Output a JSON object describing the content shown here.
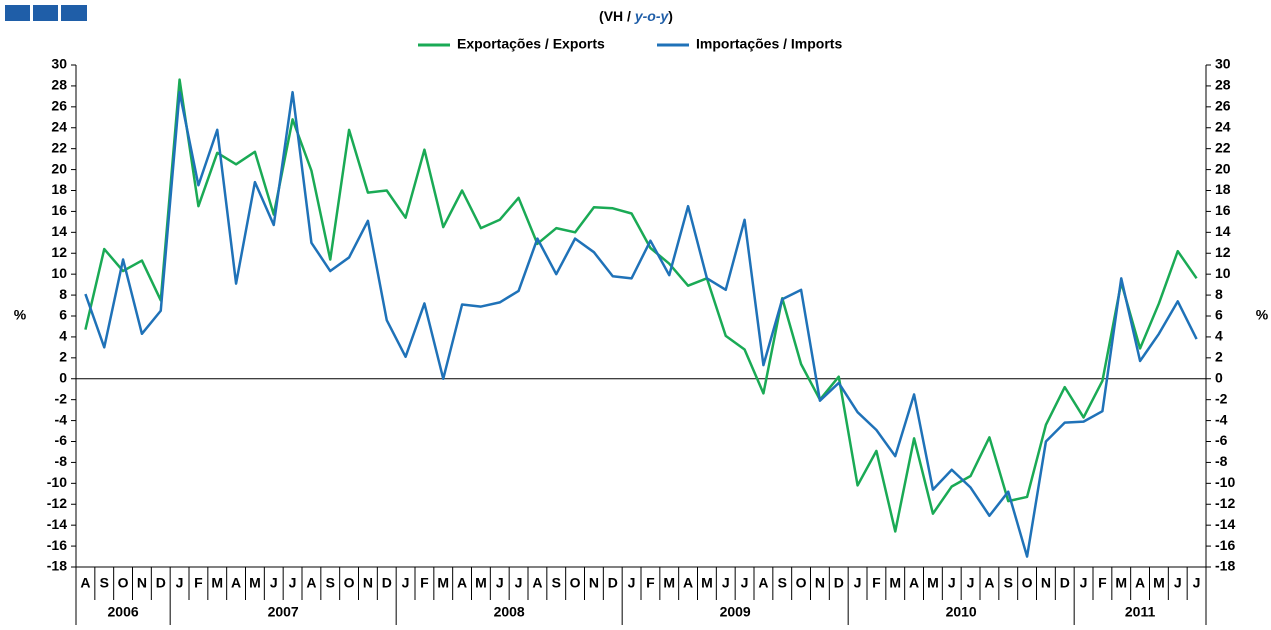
{
  "chart_data": {
    "type": "line",
    "title_parts": [
      "(VH / ",
      "y-o-y",
      ")"
    ],
    "ylabel": "%",
    "y2label": "%",
    "categories": [
      "A",
      "S",
      "O",
      "N",
      "D",
      "J",
      "F",
      "M",
      "A",
      "M",
      "J",
      "J",
      "A",
      "S",
      "O",
      "N",
      "D",
      "J",
      "F",
      "M",
      "A",
      "M",
      "J",
      "J",
      "A",
      "S",
      "O",
      "N",
      "D",
      "J",
      "F",
      "M",
      "A",
      "M",
      "J",
      "J",
      "A",
      "S",
      "O",
      "N",
      "D",
      "J",
      "F",
      "M",
      "A",
      "M",
      "J",
      "J",
      "A",
      "S",
      "O",
      "N",
      "D",
      "J",
      "F",
      "M",
      "A",
      "M",
      "J",
      "J"
    ],
    "years": [
      "2006",
      "2007",
      "2008",
      "2009",
      "2010",
      "2011"
    ],
    "series": [
      {
        "name": "Exportações / Exports",
        "color": "#1aaa55",
        "values": [
          4.7,
          12.4,
          10.3,
          11.3,
          7.5,
          28.6,
          16.5,
          21.6,
          20.5,
          21.7,
          15.7,
          24.8,
          19.9,
          11.4,
          23.8,
          17.8,
          18.0,
          15.4,
          21.9,
          14.5,
          18.0,
          14.4,
          15.2,
          17.3,
          12.9,
          14.4,
          14.0,
          16.4,
          16.3,
          15.8,
          12.5,
          11.0,
          8.9,
          9.6,
          4.1,
          2.8,
          -1.4,
          7.7,
          1.4,
          -2.0,
          0.2,
          -10.2,
          -6.9,
          -14.6,
          -5.7,
          -12.9,
          -10.3,
          -9.3,
          -5.6,
          -11.7,
          -11.3,
          -4.4,
          -0.8,
          -3.7,
          -0.2,
          9.2,
          2.9,
          7.2,
          12.2,
          9.6
        ]
      },
      {
        "name": "Importações / Imports",
        "color": "#1f72b8",
        "values": [
          8.1,
          3.0,
          11.4,
          4.3,
          6.5,
          27.4,
          18.5,
          23.8,
          9.1,
          18.8,
          14.7,
          27.4,
          13.0,
          10.3,
          11.6,
          15.1,
          5.6,
          2.1,
          7.2,
          0.0,
          7.1,
          6.9,
          7.3,
          8.4,
          13.4,
          10.0,
          13.4,
          12.1,
          9.8,
          9.6,
          13.2,
          9.9,
          16.5,
          9.6,
          8.5,
          15.2,
          1.3,
          7.6,
          8.5,
          -2.1,
          -0.4,
          -3.2,
          -4.9,
          -7.4,
          -1.5,
          -10.6,
          -8.7,
          -10.4,
          -13.1,
          -10.8,
          -17.0,
          -6.0,
          -4.2,
          -4.1,
          -3.1,
          9.6,
          1.7,
          4.3,
          7.4,
          3.8
        ]
      }
    ],
    "ylim": [
      -18,
      30
    ],
    "yticks": [
      -18,
      -16,
      -14,
      -12,
      -10,
      -8,
      -6,
      -4,
      -2,
      0,
      2,
      4,
      6,
      8,
      10,
      12,
      14,
      16,
      18,
      20,
      22,
      24,
      26,
      28,
      30
    ],
    "y2lim": [
      -18,
      30
    ],
    "y2ticks": [
      -18,
      -16,
      -14,
      -12,
      -10,
      -8,
      -6,
      -4,
      -2,
      0,
      2,
      4,
      6,
      8,
      10,
      12,
      14,
      16,
      18,
      20,
      22,
      24,
      26,
      28,
      30
    ],
    "legend": "top"
  }
}
